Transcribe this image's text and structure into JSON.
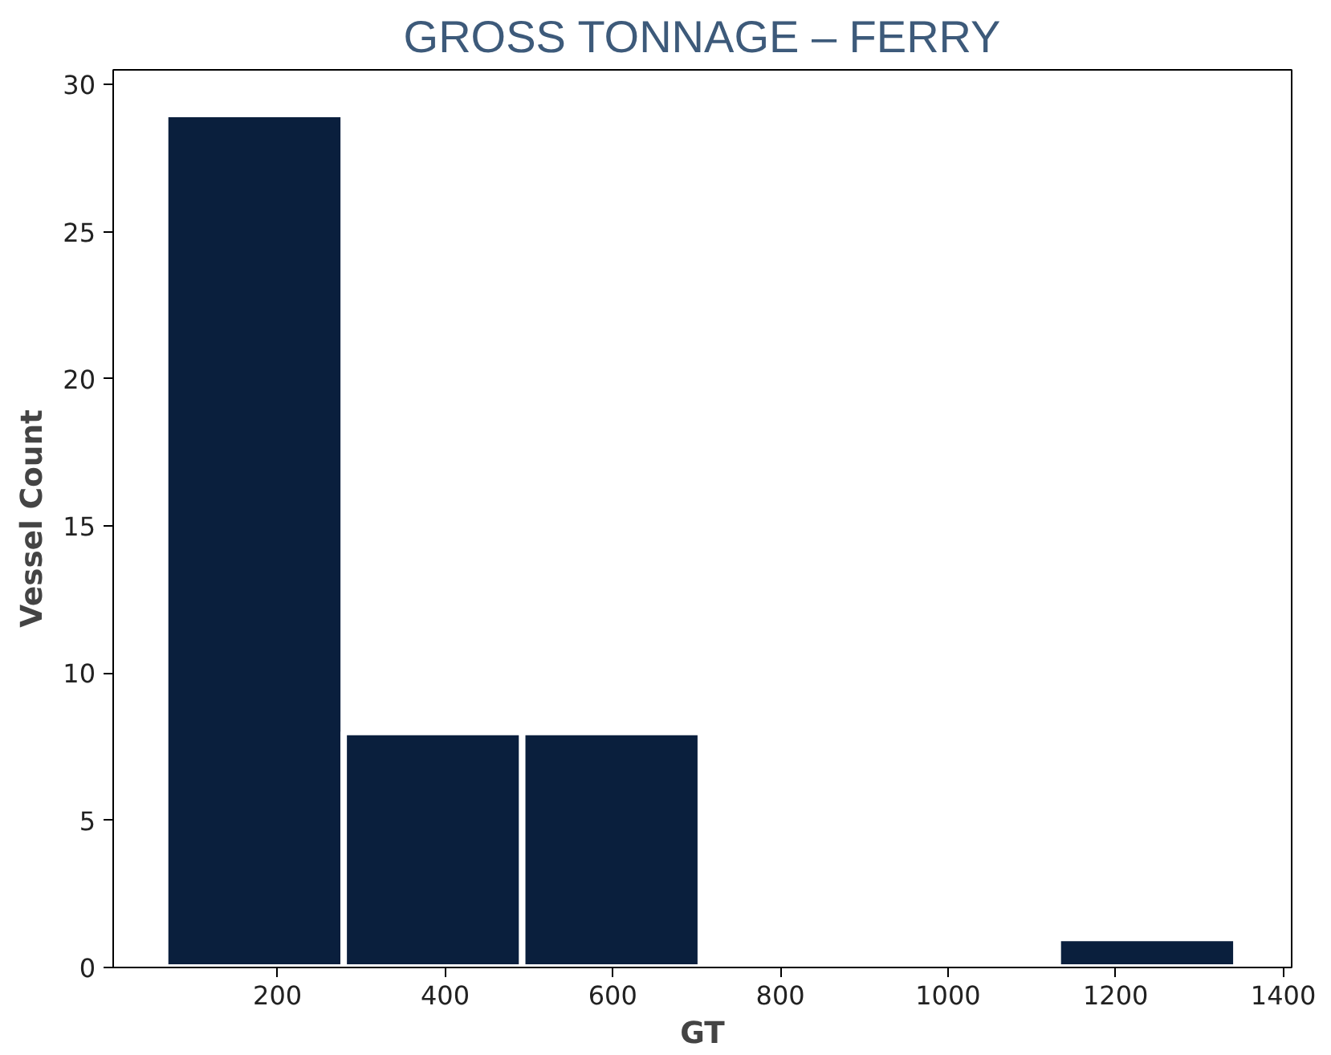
{
  "chart_data": {
    "type": "histogram",
    "title": "GROSS TONNAGE – FERRY",
    "xlabel": "GT",
    "ylabel": "Vessel Count",
    "bins": [
      66,
      279,
      492,
      705,
      918,
      1131,
      1344
    ],
    "values": [
      29,
      8,
      8,
      0,
      0,
      1
    ],
    "color": "#0a1f3d",
    "xlim": [
      4,
      1410
    ],
    "xticks": [
      200,
      400,
      600,
      800,
      1000,
      1200,
      1400
    ],
    "ylim": [
      0,
      30.5
    ],
    "yticks": [
      0,
      5,
      10,
      15,
      20,
      25,
      30
    ],
    "grid": false
  }
}
